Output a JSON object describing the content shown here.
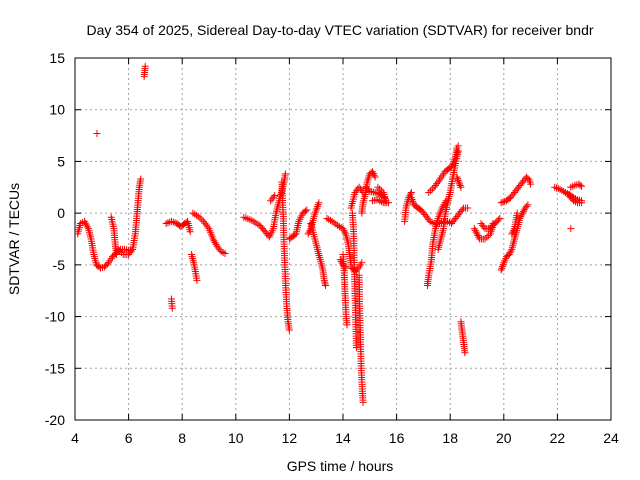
{
  "chart_data": {
    "type": "scatter",
    "title": "Day 354 of 2025, Sidereal Day-to-day VTEC variation (SDTVAR) for receiver bndr",
    "xlabel": "GPS time / hours",
    "ylabel": "SDTVAR / TECUs",
    "xlim": [
      4,
      24
    ],
    "ylim": [
      -20,
      15
    ],
    "xticks": [
      4,
      6,
      8,
      10,
      12,
      14,
      16,
      18,
      20,
      22,
      24
    ],
    "yticks": [
      -20,
      -15,
      -10,
      -5,
      0,
      5,
      10,
      15
    ],
    "grid": true,
    "marker": "+",
    "colors": {
      "series": "#ff0000",
      "grid": "#a0a0a0",
      "axis": "#000000"
    },
    "tracks": [
      [
        [
          4.1,
          -2.0
        ],
        [
          4.2,
          -1.0
        ],
        [
          4.35,
          -0.8
        ],
        [
          4.5,
          -1.5
        ],
        [
          4.6,
          -2.5
        ],
        [
          4.7,
          -4.0
        ],
        [
          4.8,
          -5.0
        ],
        [
          4.95,
          -5.3
        ],
        [
          5.1,
          -5.2
        ],
        [
          5.25,
          -4.8
        ],
        [
          5.4,
          -4.2
        ],
        [
          5.55,
          -3.8
        ],
        [
          5.7,
          -3.5
        ],
        [
          5.85,
          -3.5
        ],
        [
          6.0,
          -3.6
        ],
        [
          6.15,
          -3.5
        ]
      ],
      [
        [
          5.35,
          -0.4
        ],
        [
          5.45,
          -1.5
        ],
        [
          5.5,
          -3.0
        ],
        [
          5.55,
          -4.0
        ]
      ],
      [
        [
          5.6,
          -3.5
        ],
        [
          5.8,
          -4.0
        ],
        [
          6.0,
          -4.0
        ],
        [
          6.15,
          -3.5
        ],
        [
          6.25,
          -2.0
        ],
        [
          6.3,
          -0.5
        ],
        [
          6.35,
          1.0
        ],
        [
          6.4,
          2.5
        ],
        [
          6.45,
          3.3
        ]
      ],
      [
        [
          6.58,
          13.2
        ],
        [
          6.62,
          14.2
        ]
      ],
      [
        [
          4.82,
          7.7
        ]
      ],
      [
        [
          7.6,
          -8.3
        ],
        [
          7.63,
          -9.2
        ]
      ],
      [
        [
          7.4,
          -1.0
        ],
        [
          7.6,
          -0.8
        ],
        [
          7.8,
          -1.0
        ],
        [
          7.95,
          -1.3
        ],
        [
          8.05,
          -1.1
        ],
        [
          8.2,
          -0.8
        ],
        [
          8.3,
          -1.8
        ]
      ],
      [
        [
          8.35,
          -4.0
        ],
        [
          8.45,
          -5.0
        ],
        [
          8.55,
          -6.5
        ]
      ],
      [
        [
          8.4,
          0.0
        ],
        [
          8.6,
          -0.3
        ],
        [
          8.8,
          -0.8
        ],
        [
          9.0,
          -1.5
        ],
        [
          9.15,
          -2.5
        ],
        [
          9.3,
          -3.2
        ],
        [
          9.45,
          -3.7
        ],
        [
          9.6,
          -3.9
        ]
      ],
      [
        [
          10.3,
          -0.4
        ],
        [
          10.6,
          -0.7
        ],
        [
          10.9,
          -1.2
        ],
        [
          11.1,
          -1.8
        ],
        [
          11.25,
          -2.3
        ],
        [
          11.4,
          -1.5
        ],
        [
          11.5,
          0.0
        ],
        [
          11.6,
          1.0
        ],
        [
          11.7,
          2.0
        ],
        [
          11.8,
          3.0
        ],
        [
          11.85,
          3.8
        ]
      ],
      [
        [
          11.3,
          1.2
        ],
        [
          11.45,
          1.7
        ]
      ],
      [
        [
          11.72,
          3.0
        ],
        [
          11.75,
          1.0
        ],
        [
          11.78,
          -1.0
        ],
        [
          11.8,
          -3.0
        ],
        [
          11.83,
          -5.0
        ],
        [
          11.86,
          -7.0
        ],
        [
          11.9,
          -9.0
        ],
        [
          11.95,
          -10.5
        ],
        [
          12.0,
          -11.3
        ]
      ],
      [
        [
          12.0,
          -2.5
        ],
        [
          12.1,
          -2.3
        ],
        [
          12.25,
          -2.0
        ],
        [
          12.35,
          -0.8
        ],
        [
          12.5,
          0.0
        ],
        [
          12.65,
          0.3
        ]
      ],
      [
        [
          12.7,
          -2.0
        ],
        [
          12.8,
          -1.5
        ],
        [
          12.9,
          -0.5
        ],
        [
          13.0,
          0.3
        ],
        [
          13.1,
          1.0
        ]
      ],
      [
        [
          12.8,
          -1.0
        ],
        [
          12.95,
          -2.5
        ],
        [
          13.05,
          -3.5
        ],
        [
          13.15,
          -4.5
        ],
        [
          13.25,
          -5.5
        ],
        [
          13.3,
          -6.5
        ],
        [
          13.35,
          -7.0
        ]
      ],
      [
        [
          13.4,
          -0.5
        ],
        [
          13.6,
          -0.8
        ],
        [
          13.8,
          -1.2
        ],
        [
          14.0,
          -1.5
        ],
        [
          14.1,
          -2.0
        ],
        [
          14.2,
          -3.0
        ],
        [
          14.25,
          -4.0
        ],
        [
          14.3,
          -5.0
        ]
      ],
      [
        [
          13.9,
          -4.5
        ],
        [
          14.0,
          -5.0
        ],
        [
          14.1,
          -5.3
        ]
      ],
      [
        [
          14.0,
          -4.0
        ],
        [
          14.05,
          -6.0
        ],
        [
          14.08,
          -8.0
        ],
        [
          14.12,
          -10.0
        ],
        [
          14.15,
          -10.8
        ]
      ],
      [
        [
          14.3,
          -5.2
        ],
        [
          14.4,
          -5.5
        ],
        [
          14.5,
          -5.6
        ],
        [
          14.6,
          -5.2
        ],
        [
          14.7,
          -4.8
        ]
      ],
      [
        [
          14.35,
          0.0
        ],
        [
          14.4,
          -2.0
        ],
        [
          14.42,
          -5.0
        ],
        [
          14.45,
          -8.0
        ],
        [
          14.48,
          -11.0
        ],
        [
          14.5,
          -13.0
        ]
      ],
      [
        [
          14.6,
          -6.0
        ],
        [
          14.62,
          -9.0
        ],
        [
          14.65,
          -12.0
        ],
        [
          14.68,
          -15.0
        ],
        [
          14.72,
          -17.0
        ],
        [
          14.75,
          -18.3
        ]
      ],
      [
        [
          14.3,
          0.5
        ],
        [
          14.45,
          2.0
        ],
        [
          14.6,
          2.5
        ],
        [
          14.75,
          2.0
        ]
      ],
      [
        [
          14.7,
          0.0
        ],
        [
          14.75,
          1.0
        ],
        [
          14.85,
          2.0
        ],
        [
          14.9,
          3.0
        ],
        [
          15.0,
          3.8
        ],
        [
          15.1,
          4.0
        ],
        [
          15.2,
          3.5
        ]
      ],
      [
        [
          14.85,
          2.5
        ],
        [
          15.0,
          2.1
        ],
        [
          15.2,
          2.0
        ],
        [
          15.4,
          1.8
        ],
        [
          15.55,
          1.5
        ]
      ],
      [
        [
          15.1,
          1.2
        ],
        [
          15.3,
          1.3
        ],
        [
          15.5,
          1.0
        ],
        [
          15.7,
          1.0
        ]
      ],
      [
        [
          15.3,
          2.5
        ],
        [
          15.5,
          2.0
        ],
        [
          15.6,
          1.2
        ]
      ],
      [
        [
          16.3,
          -0.8
        ],
        [
          16.35,
          0.5
        ],
        [
          16.45,
          1.5
        ],
        [
          16.55,
          2.0
        ]
      ],
      [
        [
          16.55,
          1.5
        ],
        [
          16.65,
          0.8
        ],
        [
          16.8,
          0.5
        ],
        [
          16.95,
          0.2
        ],
        [
          17.1,
          -0.3
        ],
        [
          17.25,
          -0.8
        ],
        [
          17.4,
          -1.0
        ],
        [
          17.6,
          -1.0
        ],
        [
          17.75,
          -0.8
        ],
        [
          17.9,
          -0.8
        ],
        [
          18.05,
          -1.0
        ],
        [
          18.2,
          -0.5
        ],
        [
          18.35,
          0.0
        ],
        [
          18.5,
          0.5
        ],
        [
          18.65,
          0.5
        ]
      ],
      [
        [
          17.15,
          -7.0
        ],
        [
          17.2,
          -6.0
        ],
        [
          17.3,
          -4.5
        ],
        [
          17.35,
          -3.0
        ],
        [
          17.45,
          -1.5
        ],
        [
          17.55,
          -0.5
        ],
        [
          17.7,
          0.5
        ],
        [
          17.85,
          1.2
        ]
      ],
      [
        [
          17.55,
          -3.5
        ],
        [
          17.65,
          -2.5
        ],
        [
          17.75,
          -1.5
        ],
        [
          17.8,
          -0.3
        ],
        [
          17.9,
          1.0
        ],
        [
          18.0,
          2.0
        ],
        [
          18.1,
          3.5
        ],
        [
          18.2,
          4.8
        ],
        [
          18.25,
          5.5
        ],
        [
          18.3,
          6.0
        ]
      ],
      [
        [
          17.2,
          2.0
        ],
        [
          17.4,
          2.5
        ],
        [
          17.6,
          3.2
        ],
        [
          17.8,
          4.0
        ],
        [
          17.95,
          4.3
        ],
        [
          18.05,
          4.5
        ],
        [
          18.15,
          5.0
        ],
        [
          18.2,
          5.5
        ],
        [
          18.25,
          6.3
        ],
        [
          18.3,
          6.5
        ]
      ],
      [
        [
          18.25,
          3.5
        ],
        [
          18.32,
          3.0
        ],
        [
          18.4,
          2.5
        ]
      ],
      [
        [
          18.4,
          -10.5
        ],
        [
          18.45,
          -11.5
        ],
        [
          18.5,
          -12.5
        ],
        [
          18.55,
          -13.5
        ]
      ],
      [
        [
          18.9,
          -1.5
        ],
        [
          19.0,
          -2.0
        ],
        [
          19.1,
          -2.5
        ],
        [
          19.3,
          -2.5
        ],
        [
          19.5,
          -2.0
        ],
        [
          19.6,
          -1.2
        ],
        [
          19.75,
          -0.8
        ],
        [
          19.85,
          -0.5
        ]
      ],
      [
        [
          19.15,
          -1.0
        ],
        [
          19.3,
          -1.5
        ],
        [
          19.5,
          -1.5
        ],
        [
          19.6,
          -1.0
        ]
      ],
      [
        [
          19.9,
          -5.5
        ],
        [
          20.0,
          -4.8
        ],
        [
          20.1,
          -4.2
        ],
        [
          20.2,
          -4.0
        ],
        [
          20.3,
          -3.5
        ],
        [
          20.4,
          -2.5
        ],
        [
          20.5,
          -1.5
        ],
        [
          20.6,
          -0.5
        ],
        [
          20.7,
          0.0
        ],
        [
          20.8,
          0.5
        ],
        [
          20.9,
          0.8
        ]
      ],
      [
        [
          20.3,
          -2.0
        ],
        [
          20.4,
          -1.5
        ],
        [
          20.5,
          0.0
        ]
      ],
      [
        [
          19.9,
          1.0
        ],
        [
          20.1,
          1.2
        ],
        [
          20.25,
          1.5
        ],
        [
          20.4,
          2.0
        ],
        [
          20.55,
          2.5
        ],
        [
          20.7,
          3.0
        ],
        [
          20.85,
          3.5
        ],
        [
          20.95,
          3.2
        ],
        [
          21.0,
          2.8
        ]
      ],
      [
        [
          21.9,
          2.5
        ],
        [
          22.1,
          2.3
        ],
        [
          22.3,
          2.0
        ],
        [
          22.45,
          1.8
        ],
        [
          22.6,
          1.5
        ],
        [
          22.75,
          1.3
        ],
        [
          22.9,
          1.2
        ]
      ],
      [
        [
          22.5,
          2.5
        ],
        [
          22.65,
          2.7
        ],
        [
          22.8,
          2.8
        ],
        [
          22.9,
          2.6
        ]
      ],
      [
        [
          22.4,
          1.8
        ],
        [
          22.6,
          1.2
        ],
        [
          22.75,
          1.0
        ],
        [
          22.9,
          1.0
        ]
      ],
      [
        [
          22.5,
          -1.5
        ]
      ]
    ]
  }
}
